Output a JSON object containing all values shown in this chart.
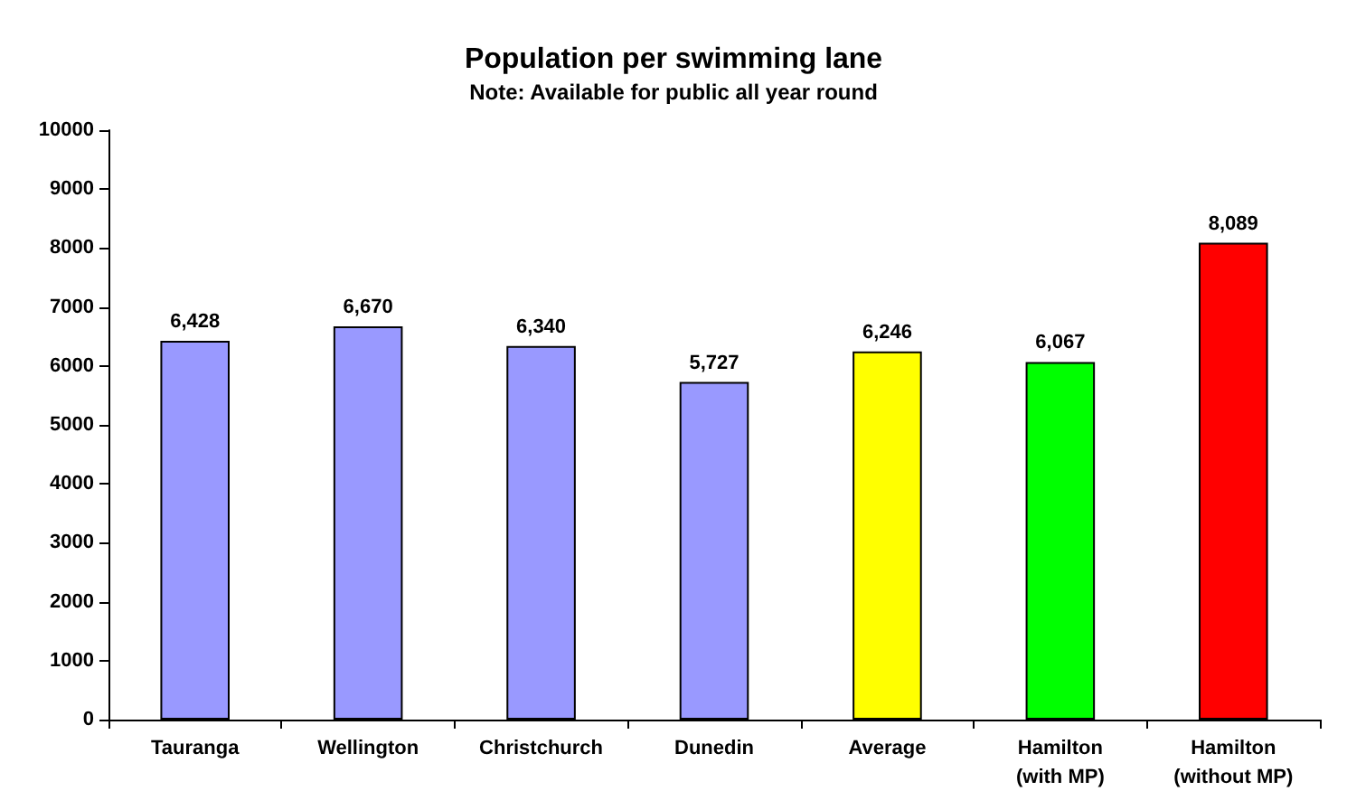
{
  "chart_data": {
    "type": "bar",
    "title": "Population per swimming lane",
    "subtitle": "Note: Available for public all year round",
    "categories": [
      "Tauranga",
      "Wellington",
      "Christchurch",
      "Dunedin",
      "Average",
      "Hamilton\n(with MP)",
      "Hamilton\n(without MP)"
    ],
    "values": [
      6428,
      6670,
      6340,
      5727,
      6246,
      6067,
      8089
    ],
    "colors": [
      "#9999ff",
      "#9999ff",
      "#9999ff",
      "#9999ff",
      "#ffff00",
      "#00ff00",
      "#ff0000"
    ],
    "value_labels": [
      "6,428",
      "6,670",
      "6,340",
      "5,727",
      "6,246",
      "6,067",
      "8,089"
    ],
    "ylim": [
      0,
      10000
    ],
    "yticks": [
      0,
      1000,
      2000,
      3000,
      4000,
      5000,
      6000,
      7000,
      8000,
      9000,
      10000
    ],
    "grid": false
  }
}
